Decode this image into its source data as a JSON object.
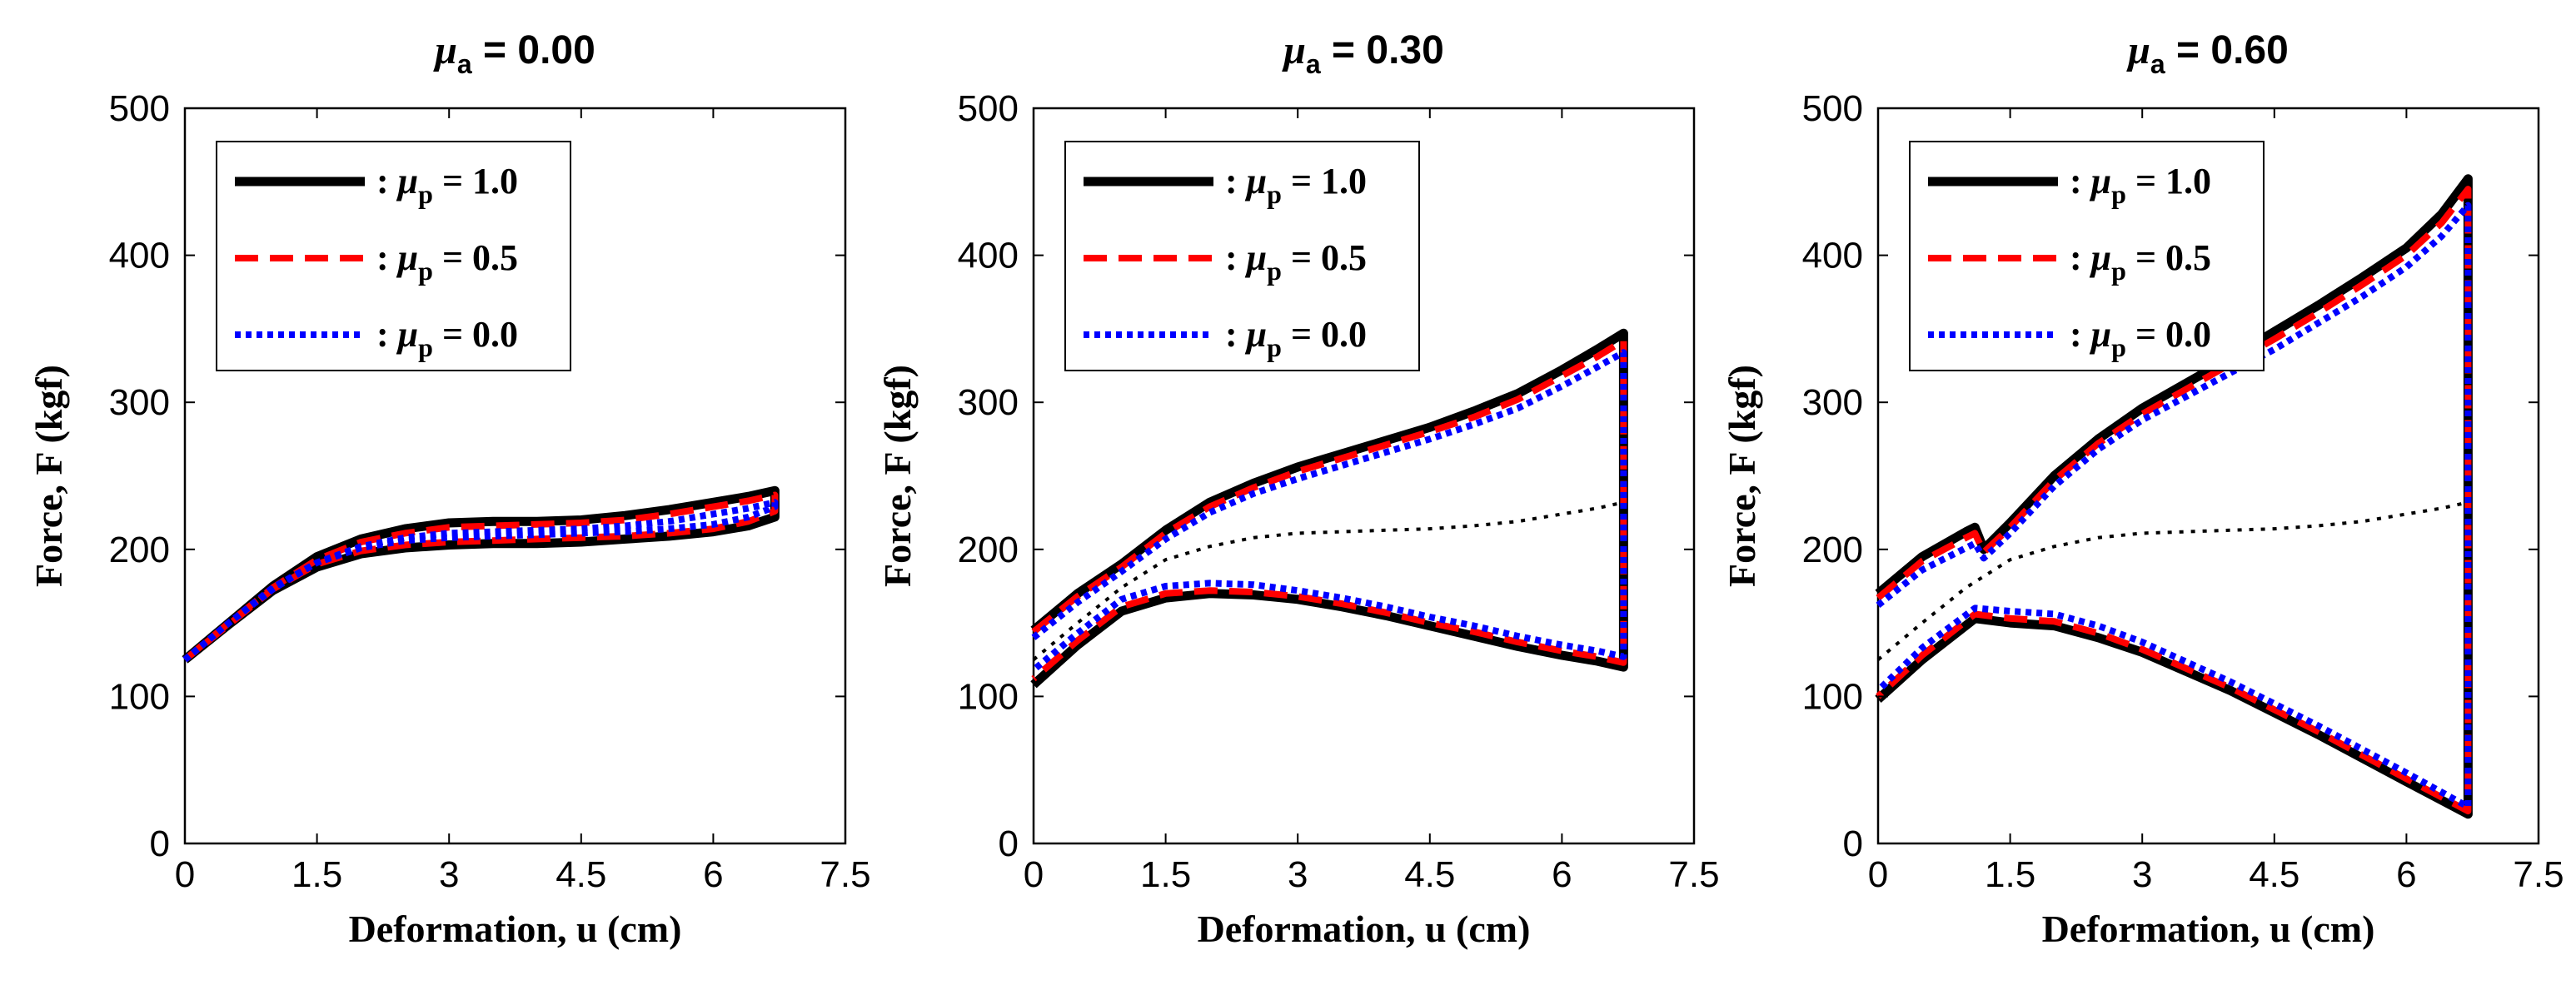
{
  "chart_data": [
    {
      "type": "line",
      "title": "μa = 0.00",
      "title_parts": {
        "symbol": "μ",
        "sub": "a",
        "rest": " = 0.00"
      },
      "xlabel": "Deformation, u (cm)",
      "ylabel": "Force, F (kgf)",
      "xlim": [
        0,
        7.5
      ],
      "ylim": [
        0,
        500
      ],
      "xticks": [
        "0",
        "1.5",
        "3",
        "4.5",
        "6",
        "7.5"
      ],
      "yticks": [
        "0",
        "100",
        "200",
        "300",
        "400",
        "500"
      ],
      "legend": [
        {
          "sym": "μ",
          "sub": "p",
          "rest": " = 1.0",
          "text": ": μp = 1.0"
        },
        {
          "sym": "μ",
          "sub": "p",
          "rest": " = 0.5",
          "text": ": μp = 0.5"
        },
        {
          "sym": "μ",
          "sub": "p",
          "rest": " = 0.0",
          "text": ": μp = 0.0"
        }
      ],
      "series": [
        {
          "name": "μp = 1.0",
          "color": "#000000",
          "style": "solid",
          "x": [
            0,
            0.5,
            1.0,
            1.5,
            2.0,
            2.5,
            3.0,
            3.5,
            4.0,
            4.5,
            5.0,
            5.5,
            6.0,
            6.4,
            6.7,
            6.7,
            6.4,
            6.0,
            5.5,
            5.0,
            4.5,
            4.0,
            3.5,
            3.0,
            2.5,
            2.0,
            1.5,
            1.0,
            0.5,
            0
          ],
          "y": [
            125,
            150,
            175,
            195,
            207,
            214,
            218,
            219,
            219,
            220,
            223,
            227,
            232,
            236,
            240,
            222,
            216,
            212,
            209,
            207,
            205,
            204,
            204,
            203,
            201,
            197,
            188,
            172,
            149,
            125
          ]
        },
        {
          "name": "μp = 0.5",
          "color": "#ff0000",
          "style": "dashed",
          "x": [
            0,
            0.5,
            1.0,
            1.5,
            2.0,
            2.5,
            3.0,
            3.5,
            4.0,
            4.5,
            5.0,
            5.5,
            6.0,
            6.4,
            6.7,
            6.7,
            6.4,
            6.0,
            5.5,
            5.0,
            4.5,
            4.0,
            3.5,
            3.0,
            2.5,
            2.0,
            1.5,
            1.0,
            0.5,
            0
          ],
          "y": [
            125,
            150,
            174,
            193,
            205,
            211,
            215,
            216,
            217,
            218,
            220,
            224,
            229,
            233,
            237,
            226,
            219,
            214,
            211,
            209,
            208,
            207,
            206,
            205,
            203,
            199,
            190,
            173,
            149,
            125
          ]
        },
        {
          "name": "μp = 0.0",
          "color": "#0000ff",
          "style": "dotted",
          "x": [
            0,
            0.5,
            1.0,
            1.5,
            2.0,
            2.5,
            3.0,
            3.5,
            4.0,
            4.5,
            5.0,
            5.5,
            6.0,
            6.4,
            6.7,
            6.7,
            6.4,
            6.0,
            5.5,
            5.0,
            4.5,
            4.0,
            3.5,
            3.0,
            2.5,
            2.0,
            1.5,
            1.0,
            0.5,
            0
          ],
          "y": [
            125,
            150,
            173,
            191,
            202,
            208,
            211,
            212,
            213,
            214,
            216,
            219,
            224,
            228,
            232,
            229,
            222,
            217,
            214,
            212,
            211,
            210,
            209,
            208,
            206,
            201,
            191,
            174,
            150,
            125
          ]
        }
      ],
      "reference": null
    },
    {
      "type": "line",
      "title": "μa = 0.30",
      "title_parts": {
        "symbol": "μ",
        "sub": "a",
        "rest": " = 0.30"
      },
      "xlabel": "Deformation, u (cm)",
      "ylabel": "Force, F (kgf)",
      "xlim": [
        0,
        7.5
      ],
      "ylim": [
        0,
        500
      ],
      "xticks": [
        "0",
        "1.5",
        "3",
        "4.5",
        "6",
        "7.5"
      ],
      "yticks": [
        "0",
        "100",
        "200",
        "300",
        "400",
        "500"
      ],
      "legend": [
        {
          "sym": "μ",
          "sub": "p",
          "rest": " = 1.0",
          "text": ": μp = 1.0"
        },
        {
          "sym": "μ",
          "sub": "p",
          "rest": " = 0.5",
          "text": ": μp = 0.5"
        },
        {
          "sym": "μ",
          "sub": "p",
          "rest": " = 0.0",
          "text": ": μp = 0.0"
        }
      ],
      "series": [
        {
          "name": "μp = 1.0",
          "color": "#000000",
          "style": "solid",
          "x": [
            0,
            0.5,
            1.0,
            1.5,
            2.0,
            2.5,
            3.0,
            3.5,
            4.0,
            4.5,
            5.0,
            5.5,
            6.0,
            6.4,
            6.7,
            6.7,
            6.4,
            6.0,
            5.5,
            5.0,
            4.5,
            4.0,
            3.5,
            3.0,
            2.5,
            2.0,
            1.5,
            1.0,
            0.5,
            0
          ],
          "y": [
            145,
            170,
            190,
            213,
            232,
            245,
            256,
            265,
            274,
            283,
            294,
            306,
            322,
            336,
            347,
            120,
            124,
            128,
            134,
            141,
            148,
            155,
            161,
            166,
            169,
            170,
            167,
            158,
            135,
            108
          ]
        },
        {
          "name": "μp = 0.5",
          "color": "#ff0000",
          "style": "dashed",
          "x": [
            0,
            0.5,
            1.0,
            1.5,
            2.0,
            2.5,
            3.0,
            3.5,
            4.0,
            4.5,
            5.0,
            5.5,
            6.0,
            6.4,
            6.7,
            6.7,
            6.4,
            6.0,
            5.5,
            5.0,
            4.5,
            4.0,
            3.5,
            3.0,
            2.5,
            2.0,
            1.5,
            1.0,
            0.5,
            0
          ],
          "y": [
            144,
            168,
            188,
            211,
            229,
            242,
            253,
            262,
            271,
            280,
            290,
            302,
            318,
            331,
            342,
            123,
            127,
            131,
            137,
            144,
            150,
            157,
            163,
            168,
            171,
            172,
            170,
            161,
            138,
            112
          ]
        },
        {
          "name": "μp = 0.0",
          "color": "#0000ff",
          "style": "dotted",
          "x": [
            0,
            0.5,
            1.0,
            1.5,
            2.0,
            2.5,
            3.0,
            3.5,
            4.0,
            4.5,
            5.0,
            5.5,
            6.0,
            6.4,
            6.7,
            6.7,
            6.4,
            6.0,
            5.5,
            5.0,
            4.5,
            4.0,
            3.5,
            3.0,
            2.5,
            2.0,
            1.5,
            1.0,
            0.5,
            0
          ],
          "y": [
            140,
            164,
            185,
            207,
            225,
            238,
            248,
            257,
            266,
            275,
            285,
            296,
            311,
            324,
            334,
            127,
            131,
            135,
            141,
            148,
            154,
            161,
            167,
            172,
            176,
            177,
            175,
            166,
            143,
            118
          ]
        }
      ],
      "reference": {
        "x": [
          0,
          0.5,
          1.0,
          1.5,
          2.0,
          2.5,
          3.0,
          3.5,
          4.0,
          4.5,
          5.0,
          5.5,
          6.0,
          6.4,
          6.7
        ],
        "y": [
          125,
          150,
          174,
          193,
          202,
          208,
          211,
          212,
          213,
          214,
          216,
          219,
          224,
          228,
          232
        ]
      }
    },
    {
      "type": "line",
      "title": "μa = 0.60",
      "title_parts": {
        "symbol": "μ",
        "sub": "a",
        "rest": " = 0.60"
      },
      "xlabel": "Deformation, u (cm)",
      "ylabel": "Force, F (kgf)",
      "xlim": [
        0,
        7.5
      ],
      "ylim": [
        0,
        500
      ],
      "xticks": [
        "0",
        "1.5",
        "3",
        "4.5",
        "6",
        "7.5"
      ],
      "yticks": [
        "0",
        "100",
        "200",
        "300",
        "400",
        "500"
      ],
      "legend": [
        {
          "sym": "μ",
          "sub": "p",
          "rest": " = 1.0",
          "text": ": μp = 1.0"
        },
        {
          "sym": "μ",
          "sub": "p",
          "rest": " = 0.5",
          "text": ": μp = 0.5"
        },
        {
          "sym": "μ",
          "sub": "p",
          "rest": " = 0.0",
          "text": ": μp = 0.0"
        }
      ],
      "series": [
        {
          "name": "μp = 1.0",
          "color": "#000000",
          "style": "solid",
          "x": [
            0,
            0.5,
            1.0,
            1.1,
            1.2,
            1.5,
            2.0,
            2.5,
            3.0,
            3.5,
            4.0,
            4.5,
            5.0,
            5.5,
            6.0,
            6.4,
            6.7,
            6.7,
            6.0,
            5.0,
            4.0,
            3.0,
            2.5,
            2.0,
            1.5,
            1.1,
            0.5,
            0
          ],
          "y": [
            170,
            195,
            212,
            215,
            200,
            218,
            250,
            275,
            296,
            313,
            330,
            348,
            366,
            385,
            405,
            428,
            452,
            20,
            42,
            74,
            104,
            130,
            140,
            148,
            150,
            153,
            125,
            98
          ]
        },
        {
          "name": "μp = 0.5",
          "color": "#ff0000",
          "style": "dashed",
          "x": [
            0,
            0.5,
            1.0,
            1.1,
            1.2,
            1.5,
            2.0,
            2.5,
            3.0,
            3.5,
            4.0,
            4.5,
            5.0,
            5.5,
            6.0,
            6.4,
            6.7,
            6.7,
            6.0,
            5.0,
            4.0,
            3.0,
            2.5,
            2.0,
            1.5,
            1.1,
            0.5,
            0
          ],
          "y": [
            167,
            192,
            208,
            211,
            198,
            215,
            247,
            272,
            292,
            309,
            326,
            343,
            361,
            380,
            400,
            422,
            445,
            22,
            44,
            76,
            106,
            132,
            143,
            151,
            153,
            156,
            128,
            100
          ]
        },
        {
          "name": "μp = 0.0",
          "color": "#0000ff",
          "style": "dotted",
          "x": [
            0,
            0.5,
            1.0,
            1.1,
            1.2,
            1.5,
            2.0,
            2.5,
            3.0,
            3.5,
            4.0,
            4.5,
            5.0,
            5.5,
            6.0,
            6.4,
            6.7,
            6.7,
            6.0,
            5.0,
            4.0,
            3.0,
            2.5,
            2.0,
            1.5,
            1.1,
            0.5,
            0
          ],
          "y": [
            162,
            186,
            201,
            204,
            194,
            211,
            243,
            268,
            288,
            304,
            320,
            336,
            354,
            372,
            392,
            413,
            434,
            25,
            48,
            80,
            110,
            137,
            148,
            156,
            158,
            160,
            133,
            104
          ]
        }
      ],
      "reference": {
        "x": [
          0,
          0.5,
          1.0,
          1.5,
          2.0,
          2.5,
          3.0,
          3.5,
          4.0,
          4.5,
          5.0,
          5.5,
          6.0,
          6.4,
          6.7
        ],
        "y": [
          125,
          150,
          174,
          193,
          202,
          208,
          211,
          212,
          213,
          214,
          216,
          219,
          224,
          228,
          232
        ]
      }
    }
  ]
}
